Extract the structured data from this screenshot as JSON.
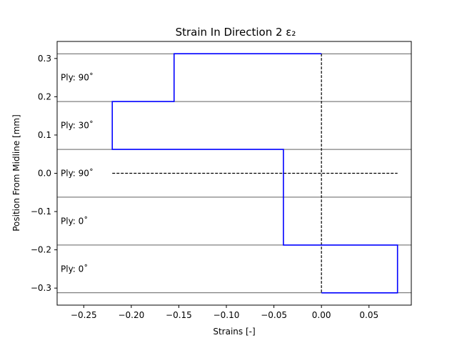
{
  "chart_data": {
    "type": "line",
    "title": "Strain In Direction 2 ε₂",
    "xlabel": "Strains [-]",
    "ylabel": "Position From Midline [mm]",
    "xlim": [
      -0.278,
      0.0945
    ],
    "ylim": [
      -0.3445,
      0.3445
    ],
    "x_ticks": [
      -0.25,
      -0.2,
      -0.15,
      -0.1,
      -0.05,
      0.0,
      0.05
    ],
    "x_tick_labels": [
      "−0.25",
      "−0.20",
      "−0.15",
      "−0.10",
      "−0.05",
      "0.00",
      "0.05"
    ],
    "y_ticks": [
      0.3,
      0.2,
      0.1,
      0.0,
      -0.1,
      -0.2,
      -0.3
    ],
    "y_tick_labels": [
      "0.3",
      "0.2",
      "0.1",
      "0.0",
      "−0.1",
      "−0.2",
      "−0.3"
    ],
    "grid": false,
    "legend": "none",
    "ply_boundaries": [
      0.3125,
      0.1875,
      0.0625,
      -0.0625,
      -0.1875,
      -0.3125
    ],
    "plies": [
      {
        "label": "Ply: 90˚",
        "y": 0.25
      },
      {
        "label": "Ply: 30˚",
        "y": 0.125
      },
      {
        "label": "Ply: 90˚",
        "y": 0.0
      },
      {
        "label": "Ply: 0˚",
        "y": -0.125
      },
      {
        "label": "Ply: 0˚",
        "y": -0.25
      }
    ],
    "strain_profile": {
      "color": "#0000ff",
      "x": [
        0.0,
        -0.155,
        -0.155,
        -0.22,
        -0.22,
        -0.04,
        -0.04,
        0.08,
        0.08,
        0.0
      ],
      "y": [
        0.3125,
        0.3125,
        0.1875,
        0.1875,
        0.0625,
        0.0625,
        -0.1875,
        -0.1875,
        -0.3125,
        -0.3125
      ]
    },
    "zero_strain_line": {
      "x": [
        0.0,
        0.0
      ],
      "y": [
        0.3125,
        -0.3125
      ]
    },
    "midline": {
      "x": [
        -0.22,
        0.08
      ],
      "y": [
        0.0,
        0.0
      ]
    }
  }
}
